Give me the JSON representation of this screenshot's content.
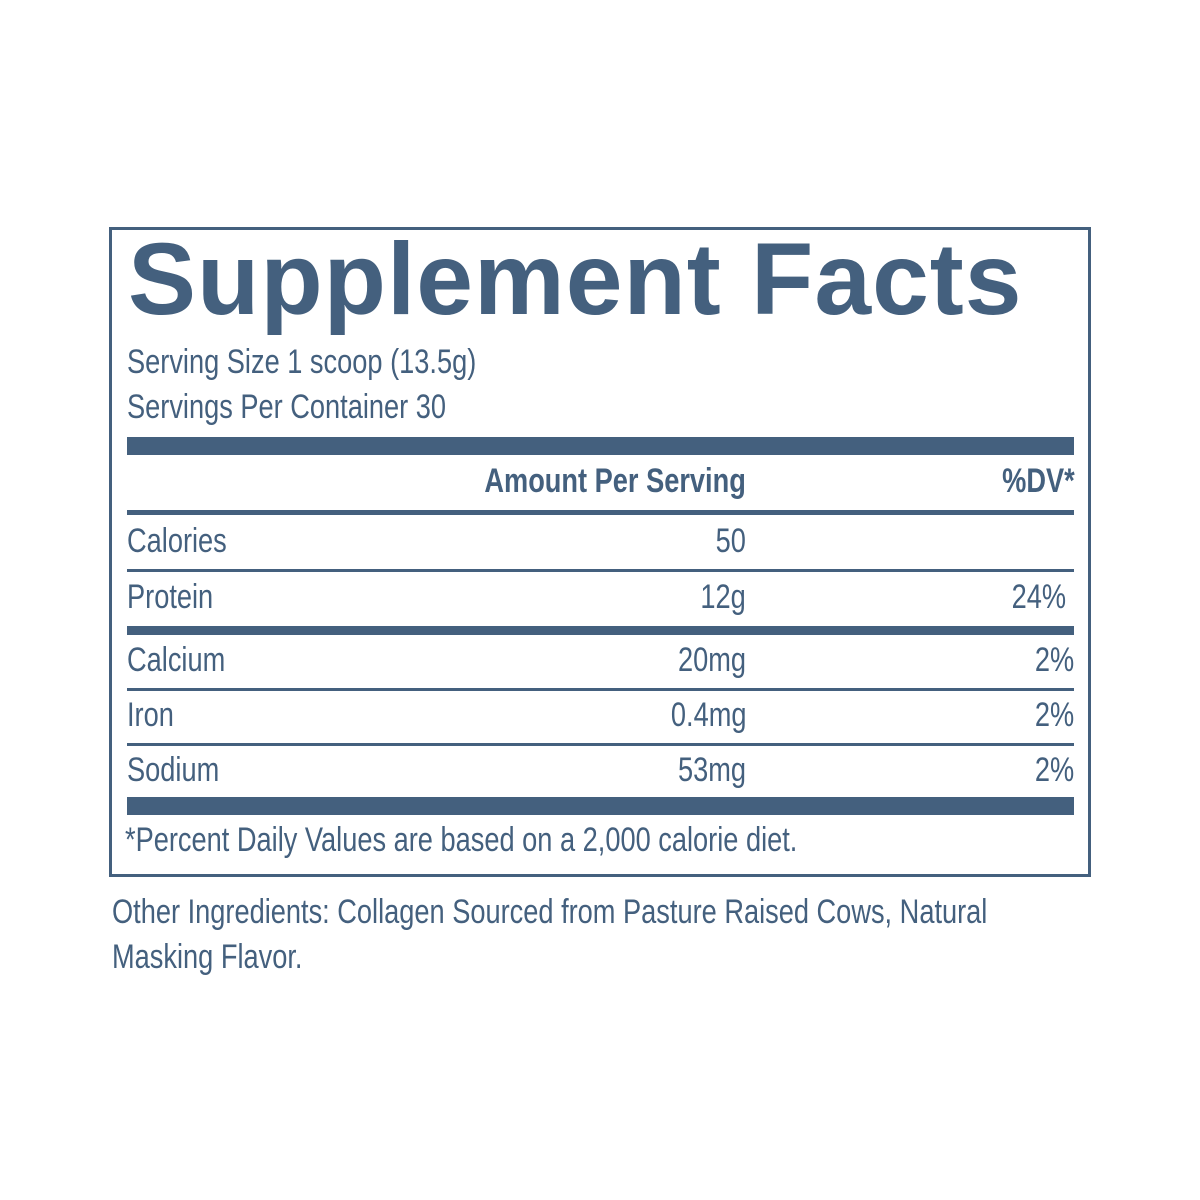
{
  "label": {
    "title": "Supplement Facts",
    "serving_size": "Serving Size 1 scoop (13.5g)",
    "servings_per_container": "Servings Per Container 30",
    "header": {
      "amount": "Amount Per Serving",
      "dv": "%DV*"
    },
    "rows": [
      {
        "name": "Calories",
        "amount": "50"
      },
      {
        "name": "Protein",
        "amount": "12g",
        "dv": "24%"
      },
      {
        "name": "Calcium",
        "amount": "20mg",
        "dv": "2%"
      },
      {
        "name": "Iron",
        "amount": "0.4mg",
        "dv": "2%"
      },
      {
        "name": "Sodium",
        "amount": "53mg",
        "dv": "2%"
      }
    ],
    "footnote": "*Percent Daily Values are based on a 2,000 calorie diet.",
    "other_ingredients": "Other Ingredients: Collagen Sourced from Pasture Raised Cows, Natural Masking Flavor."
  }
}
